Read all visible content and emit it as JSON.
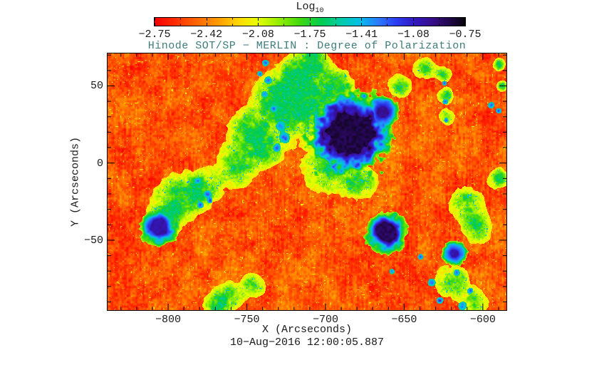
{
  "title": "Hinode SOT/SP − MERLIN : Degree of Polarization",
  "title_color": "#3E7C7C",
  "timestamp": "10−Aug−2016 12:00:05.887",
  "colorbar": {
    "label": "Log",
    "label_sub": "10",
    "tick_labels": [
      "−2.75",
      "−2.42",
      "−2.08",
      "−1.75",
      "−1.41",
      "−1.08",
      "−0.75"
    ],
    "range": [
      -2.75,
      -0.75
    ]
  },
  "chart_data": {
    "type": "heatmap",
    "title": "Hinode SOT/SP − MERLIN : Degree of Polarization",
    "value_scale_label": "Log10",
    "xlabel": "X (Arcseconds)",
    "ylabel": "Y (Arcseconds)",
    "xlim": [
      -838.5,
      -585.0
    ],
    "ylim": [
      -95.3,
      71.0
    ],
    "xticks": [
      -800,
      -750,
      -700,
      -650,
      -600
    ],
    "xtick_labels": [
      "−800",
      "−750",
      "−700",
      "−650",
      "−600"
    ],
    "yticks": [
      50,
      0,
      -50
    ],
    "ytick_labels": [
      "50",
      "0",
      "−50"
    ],
    "minor_tick_step": 10,
    "colorbar_min": -2.75,
    "colorbar_max": -0.75,
    "colormap_stops": [
      [
        0.0,
        "#f80000"
      ],
      [
        0.06,
        "#ff2a00"
      ],
      [
        0.12,
        "#ff5a00"
      ],
      [
        0.2,
        "#ff9800"
      ],
      [
        0.27,
        "#ffd800"
      ],
      [
        0.33,
        "#e8ff00"
      ],
      [
        0.4,
        "#95ee00"
      ],
      [
        0.47,
        "#3fd810"
      ],
      [
        0.54,
        "#00cc55"
      ],
      [
        0.6,
        "#00cda8"
      ],
      [
        0.66,
        "#00bfe8"
      ],
      [
        0.72,
        "#2d7bff"
      ],
      [
        0.78,
        "#2b3cf0"
      ],
      [
        0.84,
        "#3318c0"
      ],
      [
        0.9,
        "#380d85"
      ],
      [
        0.95,
        "#22074b"
      ],
      [
        1.0,
        "#070509"
      ]
    ],
    "noise_seed": 11,
    "sunspots": [
      {
        "x": -685.0,
        "y": 19.3,
        "r_core": 14.0,
        "r_blue": 22.0,
        "r_green": 28.0,
        "core_t": 0.93,
        "spike": 0.62,
        "seed": 1
      },
      {
        "x": -663.8,
        "y": 33.1,
        "r_core": 3.6,
        "r_blue": 8.0,
        "r_green": 11.0,
        "core_t": 0.86,
        "spike": 0.5,
        "seed": 2
      },
      {
        "x": -661.5,
        "y": -44.5,
        "r_core": 6.3,
        "r_blue": 10.0,
        "r_green": 13.5,
        "core_t": 0.91,
        "spike": 0.45,
        "seed": 3
      },
      {
        "x": -618.5,
        "y": -58.3,
        "r_core": 2.7,
        "r_blue": 5.9,
        "r_green": 8.0,
        "core_t": 0.83,
        "spike": 0.45,
        "seed": 4
      },
      {
        "x": -806.4,
        "y": -41.2,
        "r_core": 5.4,
        "r_blue": 8.6,
        "r_green": 12.6,
        "core_t": 0.84,
        "spike": 0.5,
        "seed": 5
      }
    ],
    "green_patches": [
      [
        -712.2,
        36.4,
        25
      ],
      [
        -730.3,
        41,
        19
      ],
      [
        -748.4,
        20.2,
        17
      ],
      [
        -757.5,
        -2.9,
        15
      ],
      [
        -698.6,
        -2.9,
        19
      ],
      [
        -678.2,
        -12.1,
        13
      ],
      [
        -716.7,
        57.1,
        16
      ],
      [
        -653.4,
        50.2,
        9
      ],
      [
        -637.5,
        61.8,
        8
      ],
      [
        -793.7,
        -21.4,
        18
      ],
      [
        -777.8,
        -16.8,
        13
      ],
      [
        -802.7,
        -37.5,
        13
      ],
      [
        -762,
        -86.1,
        11
      ],
      [
        -746.2,
        -79.1,
        9
      ],
      [
        -610.3,
        -26,
        13
      ],
      [
        -603.5,
        -42.2,
        11
      ],
      [
        -619.4,
        -76.8,
        13
      ],
      [
        -604.4,
        -90.7,
        10
      ],
      [
        -691.8,
        50.2,
        12
      ],
      [
        -739,
        9,
        13
      ],
      [
        -707.6,
        66.5,
        10
      ],
      [
        -771,
        -93,
        9
      ],
      [
        -590,
        -9.8,
        8
      ],
      [
        -672,
        27,
        8
      ],
      [
        -625,
        58,
        6
      ],
      [
        -624,
        44,
        6
      ],
      [
        -623,
        30,
        6
      ],
      [
        -590,
        64.1,
        5
      ],
      [
        -588,
        50,
        4
      ]
    ],
    "blue_blobs": [
      [
        -738.4,
        65,
        3
      ],
      [
        -736.6,
        53.9,
        3.5
      ],
      [
        -738.9,
        44.7,
        3
      ],
      [
        -733,
        35.4,
        3.5
      ],
      [
        -728.5,
        24.3,
        4.5
      ],
      [
        -726.2,
        16.5,
        5
      ],
      [
        -731.2,
        10,
        3.5
      ],
      [
        -781.5,
        -11.2,
        3
      ],
      [
        -775.1,
        -20,
        3.5
      ],
      [
        -779.7,
        -26.9,
        3
      ],
      [
        -773.8,
        -24.1,
        2.5
      ],
      [
        -632.5,
        -77.3,
        3.5
      ],
      [
        -627.5,
        -88.8,
        3
      ],
      [
        -616.7,
        -70.8,
        3
      ],
      [
        -613.1,
        -92.5,
        4
      ],
      [
        -608.1,
        -82.4,
        2.5
      ],
      [
        -639.8,
        -60.6,
        2.5
      ],
      [
        -594.9,
        37.7,
        3
      ],
      [
        -590,
        34.1,
        2.5
      ],
      [
        -624.5,
        52,
        2.2
      ],
      [
        -624,
        40,
        2.5
      ],
      [
        -623.5,
        28,
        2
      ],
      [
        -658,
        -70,
        2.5
      ],
      [
        -742,
        58,
        2.5
      ]
    ]
  }
}
